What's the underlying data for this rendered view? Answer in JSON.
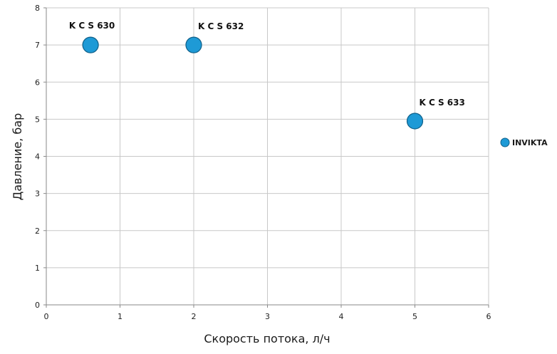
{
  "chart_data": {
    "type": "scatter",
    "title": "",
    "xlabel": "Скорость потока, л/ч",
    "ylabel": "Давление, бар",
    "xlim": [
      0,
      6
    ],
    "ylim": [
      0,
      8
    ],
    "x_ticks": [
      0,
      1,
      2,
      3,
      4,
      5,
      6
    ],
    "y_ticks": [
      0,
      1,
      2,
      3,
      4,
      5,
      6,
      7,
      8
    ],
    "grid": true,
    "legend": "right",
    "series": [
      {
        "name": "INVIKTA",
        "color": "#1e9ad6",
        "points": [
          {
            "x": 0.6,
            "y": 7,
            "label": "K C S 630"
          },
          {
            "x": 2,
            "y": 7,
            "label": "K C S 632"
          },
          {
            "x": 5,
            "y": 4.95,
            "label": "K C S 633"
          }
        ]
      }
    ]
  }
}
